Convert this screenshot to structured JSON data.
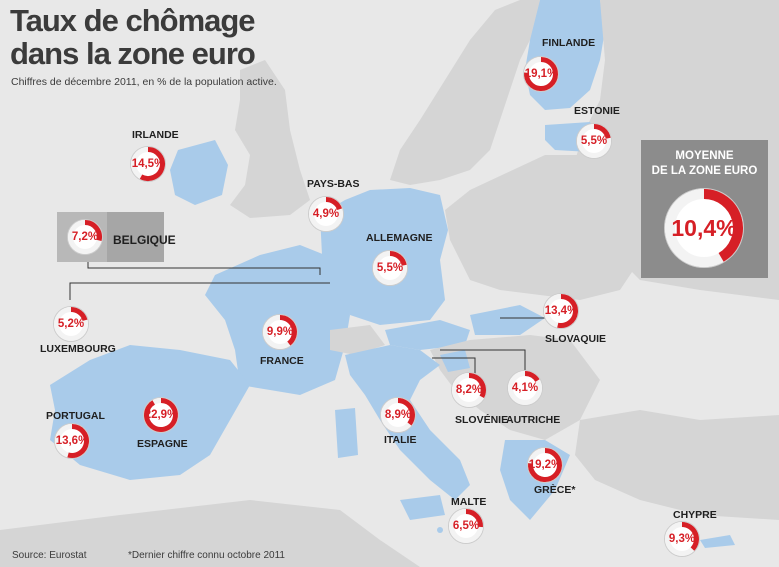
{
  "title_line1": "Taux de chômage",
  "title_line2": "dans la zone euro",
  "subtitle": "Chiffres de décembre 2011, en % de la population active.",
  "source": "Source: Eurostat",
  "footnote": "*Dernier chiffre connu octobre 2011",
  "average": {
    "title_line1": "MOYENNE",
    "title_line2": "DE LA ZONE EURO",
    "value": 10.4,
    "text": "10,4%"
  },
  "colors": {
    "eurozone": "#a9cbea",
    "other_land": "#d5d5d5",
    "sea": "#e8e8e8",
    "accent": "#d61f26"
  },
  "countries": [
    {
      "id": "finlande",
      "name": "FINLANDE",
      "value": 19.1,
      "text": "19,1%"
    },
    {
      "id": "estonie",
      "name": "ESTONIE",
      "value": 5.5,
      "text": "5,5%"
    },
    {
      "id": "irlande",
      "name": "IRLANDE",
      "value": 14.5,
      "text": "14,5%"
    },
    {
      "id": "pays-bas",
      "name": "PAYS-BAS",
      "value": 4.9,
      "text": "4,9%"
    },
    {
      "id": "belgique",
      "name": "BELGIQUE",
      "value": 7.2,
      "text": "7,2%"
    },
    {
      "id": "allemagne",
      "name": "ALLEMAGNE",
      "value": 5.5,
      "text": "5,5%"
    },
    {
      "id": "luxembourg",
      "name": "LUXEMBOURG",
      "value": 5.2,
      "text": "5,2%"
    },
    {
      "id": "france",
      "name": "FRANCE",
      "value": 9.9,
      "text": "9,9%"
    },
    {
      "id": "slovaquie",
      "name": "SLOVAQUIE",
      "value": 13.4,
      "text": "13,4%"
    },
    {
      "id": "autriche",
      "name": "AUTRICHE",
      "value": 4.1,
      "text": "4,1%"
    },
    {
      "id": "slovenie",
      "name": "SLOVÉNIE",
      "value": 8.2,
      "text": "8,2%"
    },
    {
      "id": "italie",
      "name": "ITALIE",
      "value": 8.9,
      "text": "8,9%"
    },
    {
      "id": "portugal",
      "name": "PORTUGAL",
      "value": 13.6,
      "text": "13,6%"
    },
    {
      "id": "espagne",
      "name": "ESPAGNE",
      "value": 22.9,
      "text": "22,9%"
    },
    {
      "id": "grece",
      "name": "GRÈCE*",
      "value": 19.2,
      "text": "19,2%"
    },
    {
      "id": "malte",
      "name": "MALTE",
      "value": 6.5,
      "text": "6,5%"
    },
    {
      "id": "chypre",
      "name": "CHYPRE",
      "value": 9.3,
      "text": "9,3%"
    }
  ]
}
